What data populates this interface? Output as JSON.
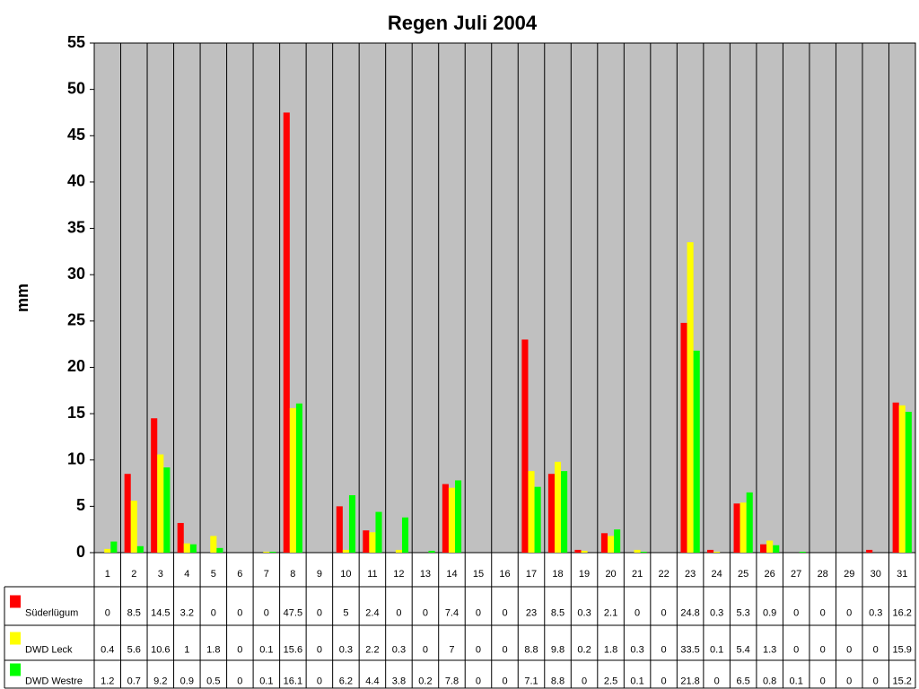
{
  "chart_data": {
    "type": "bar",
    "title": "Regen Juli 2004",
    "y_label": "mm",
    "categories": [
      "1",
      "2",
      "3",
      "4",
      "5",
      "6",
      "7",
      "8",
      "9",
      "10",
      "11",
      "12",
      "13",
      "14",
      "15",
      "16",
      "17",
      "18",
      "19",
      "20",
      "21",
      "22",
      "23",
      "24",
      "25",
      "26",
      "27",
      "28",
      "29",
      "30",
      "31"
    ],
    "series": [
      {
        "name": "Süderlügum",
        "color": "#ff0000",
        "values": [
          0,
          8.5,
          14.5,
          3.2,
          0,
          0,
          0,
          47.5,
          0,
          5,
          2.4,
          0,
          0,
          7.4,
          0,
          0,
          23,
          8.5,
          0.3,
          2.1,
          0,
          0,
          24.8,
          0.3,
          5.3,
          0.9,
          0,
          0,
          0,
          0.3,
          16.2
        ]
      },
      {
        "name": "DWD Leck",
        "color": "#ffff00",
        "values": [
          0.4,
          5.6,
          10.6,
          1,
          1.8,
          0,
          0.1,
          15.6,
          0,
          0.3,
          2.2,
          0.3,
          0,
          7,
          0,
          0,
          8.8,
          9.8,
          0.2,
          1.8,
          0.3,
          0,
          33.5,
          0.1,
          5.4,
          1.3,
          0,
          0,
          0,
          0,
          15.9
        ]
      },
      {
        "name": "DWD Westre",
        "color": "#00ff00",
        "values": [
          1.2,
          0.7,
          9.2,
          0.9,
          0.5,
          0,
          0.1,
          16.1,
          0,
          6.2,
          4.4,
          3.8,
          0.2,
          7.8,
          0,
          0,
          7.1,
          8.8,
          0,
          2.5,
          0.1,
          0,
          21.8,
          0,
          6.5,
          0.8,
          0.1,
          0,
          0,
          0,
          15.2
        ]
      }
    ],
    "ylim": [
      0,
      55
    ],
    "yticks": [
      0,
      5,
      10,
      15,
      20,
      25,
      30,
      35,
      40,
      45,
      50,
      55
    ],
    "plot_background": "#c0c0c0"
  }
}
